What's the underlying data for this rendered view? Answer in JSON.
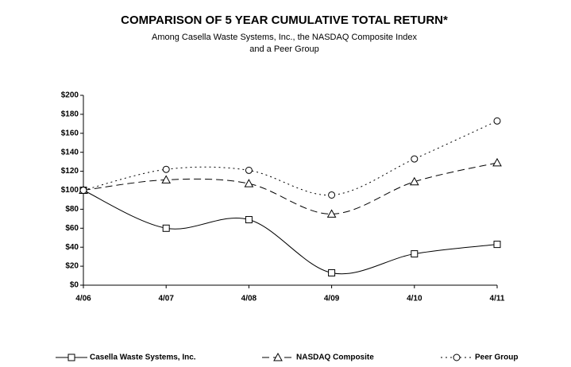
{
  "chart_data": {
    "type": "line",
    "title": "COMPARISON OF 5 YEAR CUMULATIVE TOTAL RETURN*",
    "subtitle": [
      "Among Casella Waste Systems, Inc., the NASDAQ Composite Index",
      "and a Peer Group"
    ],
    "categories": [
      "4/06",
      "4/07",
      "4/08",
      "4/09",
      "4/10",
      "4/11"
    ],
    "ylim": [
      0,
      200
    ],
    "yticks": [
      {
        "value": 0,
        "label": "$0"
      },
      {
        "value": 20,
        "label": "$20"
      },
      {
        "value": 40,
        "label": "$40"
      },
      {
        "value": 60,
        "label": "$60"
      },
      {
        "value": 80,
        "label": "$80"
      },
      {
        "value": 100,
        "label": "$100"
      },
      {
        "value": 120,
        "label": "$120"
      },
      {
        "value": 140,
        "label": "$140"
      },
      {
        "value": 160,
        "label": "$160"
      },
      {
        "value": 180,
        "label": "$180"
      },
      {
        "value": 200,
        "label": "$200"
      }
    ],
    "legend": "bottom",
    "series": [
      {
        "name": "Casella Waste Systems, Inc.",
        "color": "#000000",
        "line_style": "solid",
        "marker": "square",
        "values": [
          100,
          60,
          69,
          13,
          33,
          43
        ]
      },
      {
        "name": "NASDAQ Composite",
        "color": "#000000",
        "line_style": "dashed",
        "marker": "triangle",
        "values": [
          100,
          111,
          107,
          75,
          109,
          129
        ]
      },
      {
        "name": "Peer Group",
        "color": "#000000",
        "line_style": "dotted",
        "marker": "circle",
        "values": [
          100,
          122,
          121,
          95,
          133,
          173
        ]
      }
    ]
  }
}
